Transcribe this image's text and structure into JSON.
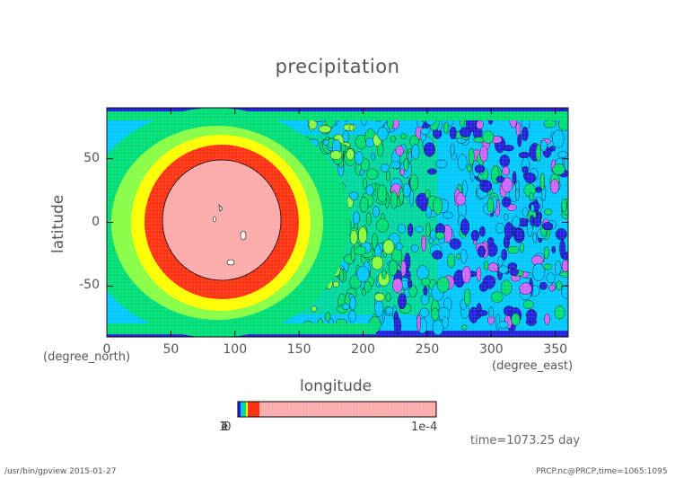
{
  "chart_data": {
    "type": "heatmap",
    "title": "precipitation",
    "xlabel": "longitude",
    "ylabel": "latitude",
    "xunit": "(degree_east)",
    "yunit": "(degree_north)",
    "xlim": [
      0,
      360
    ],
    "ylim": [
      -90,
      90
    ],
    "x_ticks": [
      0,
      50,
      100,
      150,
      200,
      250,
      300,
      350
    ],
    "y_ticks": [
      50,
      0,
      -50
    ],
    "grid": true,
    "colorbar": {
      "labels": [
        "1e-4"
      ],
      "overlapped_left_label": "1e-10"
    },
    "features": [
      {
        "name": "storm",
        "center_lon": 90,
        "center_lat": 0,
        "core_value": 0.0001
      },
      {
        "name": "wave-field",
        "lon_range": [
          160,
          360
        ]
      }
    ],
    "level_colors": [
      "#2222dd",
      "#00c8ff",
      "#00dd77",
      "#88ff44",
      "#ffff00",
      "#ff3311",
      "#ffaaaa",
      "#cc66ff"
    ]
  },
  "annotations": {
    "time": "time=1073.25 day",
    "footer_left": "/usr/bin/gpview  2015-01-27",
    "footer_right": "PRCP.nc@PRCP,time=1065:1095"
  }
}
